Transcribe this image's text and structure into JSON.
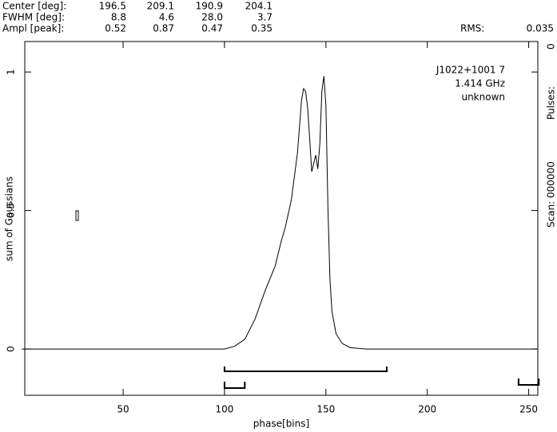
{
  "chart_data": {
    "type": "line",
    "header_rows": [
      [
        "Center [deg]:",
        "196.5",
        "209.1",
        "190.9",
        "204.1"
      ],
      [
        "FWHM  [deg]:",
        "8.8",
        "4.6",
        "28.0",
        "3.7"
      ],
      [
        "Ampl  [peak]:",
        "0.52",
        "0.87",
        "0.47",
        "0.35"
      ]
    ],
    "rms_label": "RMS:",
    "rms_value": "0.035",
    "annotations": [
      "J1022+1001 7",
      "1.414 GHz",
      "unknown"
    ],
    "scan": "Scan: 000000",
    "pulses_label": "Pulses:",
    "pulses_value": "0",
    "xlabel": "phase[bins]",
    "ylabel": "sum of Gaussians",
    "x": [
      0,
      90,
      100,
      105,
      110,
      115,
      120,
      125,
      128,
      130,
      133,
      136,
      138,
      139,
      140,
      141,
      142,
      143,
      144,
      145,
      146,
      147,
      148,
      149,
      150,
      151,
      152,
      153,
      155,
      158,
      162,
      170,
      254
    ],
    "series": [
      {
        "color": "#000000",
        "values": [
          0,
          0,
          0,
          0.01,
          0.035,
          0.107,
          0.21,
          0.3,
          0.39,
          0.44,
          0.54,
          0.71,
          0.9,
          0.94,
          0.93,
          0.87,
          0.76,
          0.64,
          0.67,
          0.7,
          0.65,
          0.74,
          0.93,
          0.985,
          0.88,
          0.51,
          0.25,
          0.135,
          0.055,
          0.02,
          0.005,
          0,
          0
        ]
      }
    ],
    "regions": [
      {
        "start": 100,
        "end": 180
      },
      {
        "start": 100,
        "end": 110
      },
      {
        "start": 245,
        "end": 255
      }
    ],
    "xlim": [
      1.5,
      254.5
    ],
    "xticks": [
      50,
      100,
      150,
      200,
      250
    ],
    "ylim": [
      -0.167,
      1.11
    ],
    "yticks": [
      0,
      0.5,
      1
    ]
  }
}
